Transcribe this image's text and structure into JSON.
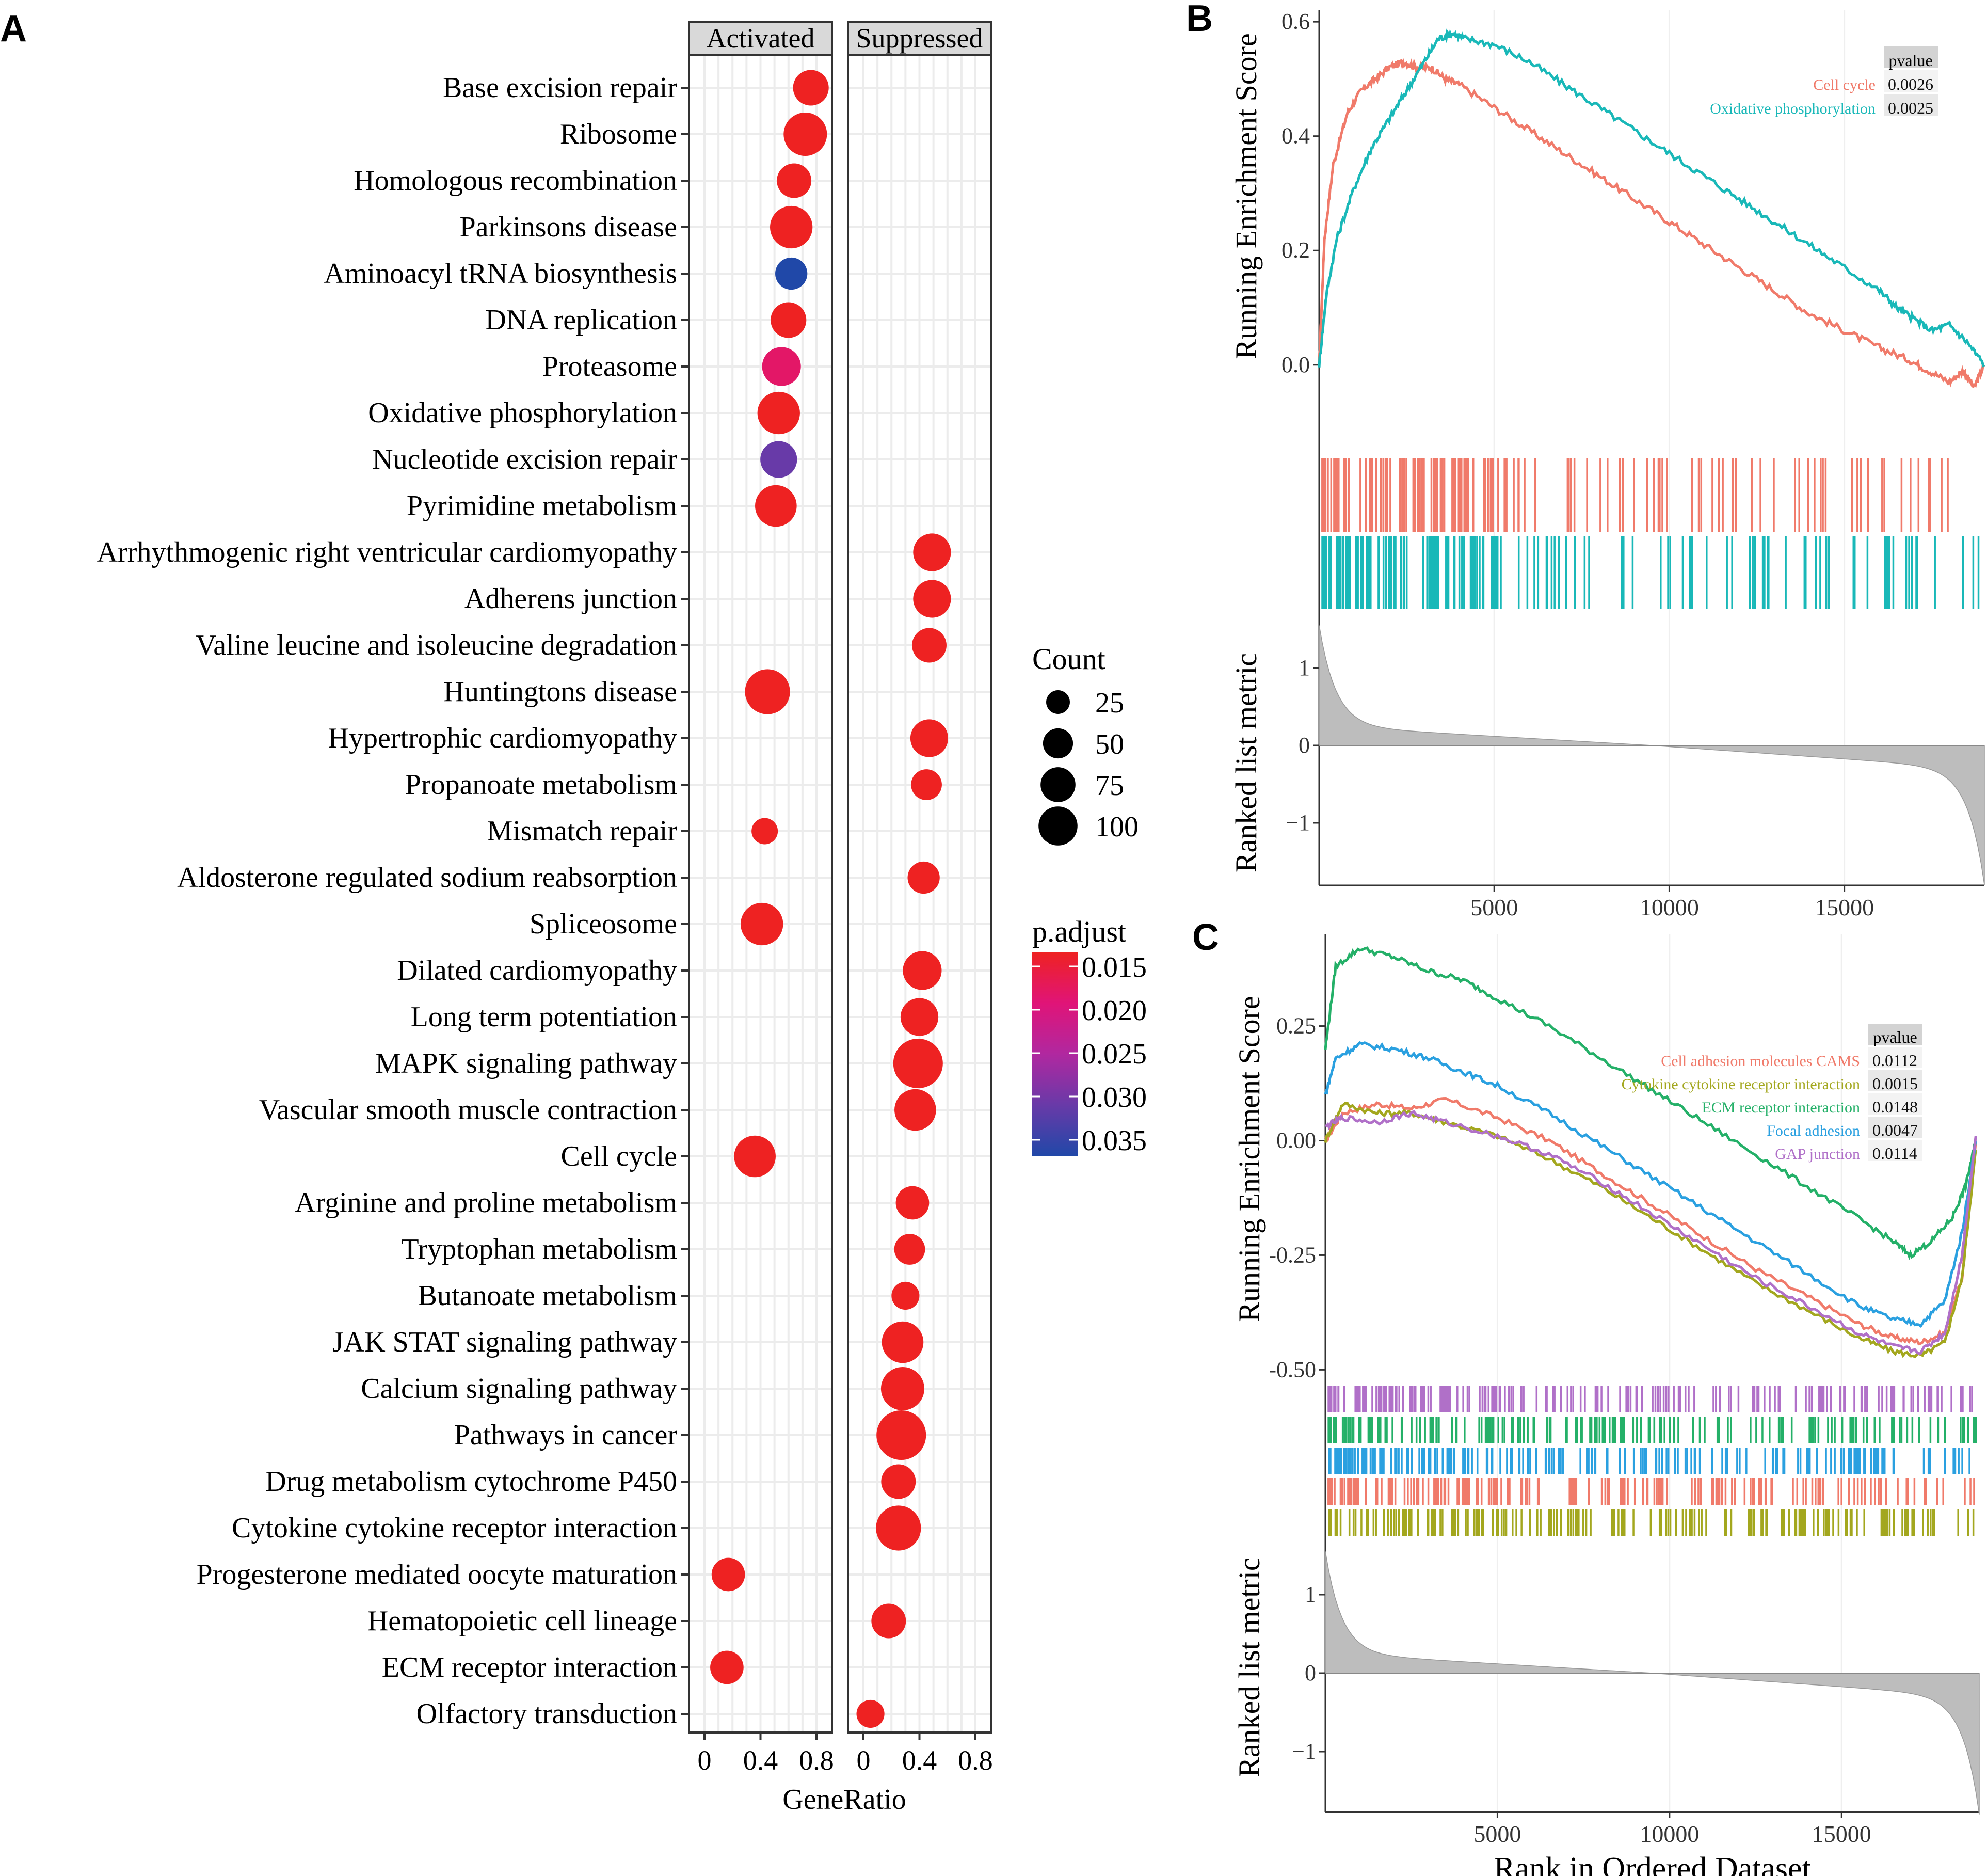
{
  "panel_labels": {
    "a": "A",
    "b": "B",
    "c": "C"
  },
  "colors": {
    "activated_red": "#ee2222",
    "cell_cycle": "#f07a6a",
    "oxphos": "#19b8b8",
    "camS": "#f07a6a",
    "cytokine": "#a3a71e",
    "ecm": "#24b068",
    "focal": "#2aa0e0",
    "gap": "#b070c8",
    "metric_fill": "#bdbdbd",
    "grid": "#ececec",
    "strip_bg": "#d9d9d9"
  },
  "chart_data": [
    {
      "id": "A",
      "type": "scatter",
      "subtype": "dotplot",
      "facets": [
        "Activated",
        "Suppressed"
      ],
      "xlabel": "GeneRatio",
      "xlim": [
        0,
        0.8
      ],
      "xticks": [
        "0",
        "0.4",
        "0.8"
      ],
      "pathways": [
        {
          "name": "Base excision repair",
          "facet": "Activated",
          "ratio": 0.76,
          "count": 60,
          "padj": 0.015
        },
        {
          "name": "Ribosome",
          "facet": "Activated",
          "ratio": 0.72,
          "count": 100,
          "padj": 0.015
        },
        {
          "name": "Homologous recombination",
          "facet": "Activated",
          "ratio": 0.64,
          "count": 55,
          "padj": 0.015
        },
        {
          "name": "Parkinsons disease",
          "facet": "Activated",
          "ratio": 0.62,
          "count": 95,
          "padj": 0.015
        },
        {
          "name": "Aminoacyl tRNA biosynthesis",
          "facet": "Activated",
          "ratio": 0.62,
          "count": 45,
          "padj": 0.035
        },
        {
          "name": "DNA replication",
          "facet": "Activated",
          "ratio": 0.6,
          "count": 60,
          "padj": 0.015
        },
        {
          "name": "Proteasome",
          "facet": "Activated",
          "ratio": 0.55,
          "count": 75,
          "padj": 0.019
        },
        {
          "name": "Oxidative phosphorylation",
          "facet": "Activated",
          "ratio": 0.53,
          "count": 95,
          "padj": 0.015
        },
        {
          "name": "Nucleotide excision repair",
          "facet": "Activated",
          "ratio": 0.53,
          "count": 65,
          "padj": 0.03
        },
        {
          "name": "Pyrimidine metabolism",
          "facet": "Activated",
          "ratio": 0.51,
          "count": 90,
          "padj": 0.015
        },
        {
          "name": "Arrhythmogenic right ventricular cardiomyopathy",
          "facet": "Suppressed",
          "ratio": 0.49,
          "count": 70,
          "padj": 0.015
        },
        {
          "name": "Adherens junction",
          "facet": "Suppressed",
          "ratio": 0.49,
          "count": 70,
          "padj": 0.015
        },
        {
          "name": "Valine leucine and isoleucine degradation",
          "facet": "Suppressed",
          "ratio": 0.47,
          "count": 55,
          "padj": 0.015
        },
        {
          "name": "Huntingtons disease",
          "facet": "Activated",
          "ratio": 0.45,
          "count": 110,
          "padj": 0.015
        },
        {
          "name": "Hypertrophic cardiomyopathy",
          "facet": "Suppressed",
          "ratio": 0.47,
          "count": 70,
          "padj": 0.015
        },
        {
          "name": "Propanoate metabolism",
          "facet": "Suppressed",
          "ratio": 0.45,
          "count": 40,
          "padj": 0.015
        },
        {
          "name": "Mismatch repair",
          "facet": "Activated",
          "ratio": 0.43,
          "count": 25,
          "padj": 0.015
        },
        {
          "name": "Aldosterone regulated sodium reabsorption",
          "facet": "Suppressed",
          "ratio": 0.43,
          "count": 45,
          "padj": 0.015
        },
        {
          "name": "Spliceosome",
          "facet": "Activated",
          "ratio": 0.41,
          "count": 95,
          "padj": 0.015
        },
        {
          "name": "Dilated cardiomyopathy",
          "facet": "Suppressed",
          "ratio": 0.42,
          "count": 75,
          "padj": 0.015
        },
        {
          "name": "Long term potentiation",
          "facet": "Suppressed",
          "ratio": 0.4,
          "count": 70,
          "padj": 0.015
        },
        {
          "name": "MAPK signaling pathway",
          "facet": "Suppressed",
          "ratio": 0.39,
          "count": 140,
          "padj": 0.015
        },
        {
          "name": "Vascular smooth muscle contraction",
          "facet": "Suppressed",
          "ratio": 0.37,
          "count": 90,
          "padj": 0.015
        },
        {
          "name": "Cell cycle",
          "facet": "Activated",
          "ratio": 0.36,
          "count": 90,
          "padj": 0.015
        },
        {
          "name": "Arginine and proline metabolism",
          "facet": "Suppressed",
          "ratio": 0.35,
          "count": 50,
          "padj": 0.015
        },
        {
          "name": "Tryptophan metabolism",
          "facet": "Suppressed",
          "ratio": 0.33,
          "count": 40,
          "padj": 0.015
        },
        {
          "name": "Butanoate metabolism",
          "facet": "Suppressed",
          "ratio": 0.3,
          "count": 30,
          "padj": 0.015
        },
        {
          "name": "JAK STAT signaling pathway",
          "facet": "Suppressed",
          "ratio": 0.28,
          "count": 90,
          "padj": 0.015
        },
        {
          "name": "Calcium signaling pathway",
          "facet": "Suppressed",
          "ratio": 0.28,
          "count": 100,
          "padj": 0.015
        },
        {
          "name": "Pathways in cancer",
          "facet": "Suppressed",
          "ratio": 0.27,
          "count": 140,
          "padj": 0.015
        },
        {
          "name": "Drug metabolism cytochrome P450",
          "facet": "Suppressed",
          "ratio": 0.25,
          "count": 55,
          "padj": 0.015
        },
        {
          "name": "Cytokine cytokine receptor interaction",
          "facet": "Suppressed",
          "ratio": 0.25,
          "count": 110,
          "padj": 0.015
        },
        {
          "name": "Progesterone mediated oocyte maturation",
          "facet": "Activated",
          "ratio": 0.17,
          "count": 50,
          "padj": 0.015
        },
        {
          "name": "Hematopoietic cell lineage",
          "facet": "Suppressed",
          "ratio": 0.18,
          "count": 55,
          "padj": 0.015
        },
        {
          "name": "ECM receptor interaction",
          "facet": "Activated",
          "ratio": 0.16,
          "count": 50,
          "padj": 0.015
        },
        {
          "name": "Olfactory transduction",
          "facet": "Suppressed",
          "ratio": 0.05,
          "count": 30,
          "padj": 0.015
        }
      ],
      "legend_count": {
        "title": "Count",
        "values": [
          25,
          50,
          75,
          100
        ],
        "labels": [
          "25",
          "50",
          "75",
          "100"
        ]
      },
      "legend_padj": {
        "title": "p.adjust",
        "labels": [
          "0.015",
          "0.020",
          "0.025",
          "0.030",
          "0.035"
        ],
        "range": [
          0.015,
          0.035
        ]
      }
    },
    {
      "id": "B",
      "type": "line",
      "ylabel": "Running Enrichment Score",
      "ylabel2": "Ranked list metric",
      "ylim": [
        -0.03,
        0.62
      ],
      "yticks": [
        "0.0",
        "0.2",
        "0.4",
        "0.6"
      ],
      "xlim": [
        0,
        19000
      ],
      "xticks": [
        "5000",
        "10000",
        "15000"
      ],
      "metric_ticks": [
        "1",
        "0",
        "−1"
      ],
      "table_header": "pvalue",
      "series": [
        {
          "name": "Cell cycle",
          "pvalue": "0.0026",
          "x": [
            0,
            150,
            400,
            800,
            1200,
            1600,
            2000,
            2400,
            2800,
            3200,
            3600,
            4000,
            5000,
            6000,
            7000,
            8000,
            9000,
            10000,
            11000,
            12000,
            13000,
            14000,
            15000,
            16000,
            16800,
            17400,
            18000,
            18400,
            18700,
            19000
          ],
          "y": [
            0,
            0.22,
            0.35,
            0.44,
            0.48,
            0.5,
            0.52,
            0.53,
            0.52,
            0.52,
            0.5,
            0.49,
            0.45,
            0.41,
            0.37,
            0.33,
            0.29,
            0.25,
            0.21,
            0.17,
            0.13,
            0.09,
            0.06,
            0.03,
            0.01,
            -0.01,
            -0.03,
            -0.01,
            -0.04,
            0
          ]
        },
        {
          "name": "Oxidative phosphorylation",
          "pvalue": "0.0025",
          "x": [
            0,
            200,
            500,
            1000,
            1500,
            2000,
            2500,
            3000,
            3400,
            3800,
            4200,
            5000,
            6000,
            7000,
            8000,
            9000,
            10000,
            11000,
            12000,
            13000,
            14000,
            15000,
            16000,
            16500,
            17000,
            17500,
            18000,
            18500,
            19000
          ],
          "y": [
            0,
            0.12,
            0.22,
            0.31,
            0.38,
            0.43,
            0.48,
            0.53,
            0.57,
            0.58,
            0.57,
            0.56,
            0.53,
            0.49,
            0.45,
            0.41,
            0.37,
            0.33,
            0.29,
            0.25,
            0.21,
            0.17,
            0.13,
            0.1,
            0.08,
            0.06,
            0.07,
            0.04,
            0
          ]
        }
      ]
    },
    {
      "id": "C",
      "type": "line",
      "ylabel": "Running Enrichment Score",
      "ylabel2": "Ranked list metric",
      "xlabel": "Rank in Ordered Dataset",
      "ylim": [
        -0.53,
        0.45
      ],
      "yticks": [
        "0.25",
        "0.00",
        "-0.25",
        "-0.50"
      ],
      "xlim": [
        0,
        19000
      ],
      "xticks": [
        "5000",
        "10000",
        "15000"
      ],
      "metric_ticks": [
        "1",
        "0",
        "−1"
      ],
      "table_header": "pvalue",
      "series": [
        {
          "name": "Cell adhesion molecules CAMS",
          "pvalue": "0.0112",
          "x": [
            0,
            500,
            1500,
            2500,
            3500,
            5000,
            6500,
            8000,
            9500,
            11000,
            12500,
            14000,
            15500,
            16500,
            17300,
            18000,
            18500,
            18900
          ],
          "y": [
            0,
            0.06,
            0.08,
            0.07,
            0.09,
            0.05,
            0.0,
            -0.07,
            -0.14,
            -0.21,
            -0.28,
            -0.34,
            -0.4,
            -0.43,
            -0.44,
            -0.42,
            -0.3,
            0.0
          ]
        },
        {
          "name": "Cytokine cytokine receptor interaction",
          "pvalue": "0.0015",
          "x": [
            0,
            500,
            1500,
            2500,
            3500,
            5000,
            6500,
            8000,
            9500,
            11000,
            12500,
            14000,
            15500,
            16500,
            17300,
            18000,
            18500,
            18900
          ],
          "y": [
            0,
            0.08,
            0.06,
            0.06,
            0.04,
            0.01,
            -0.04,
            -0.1,
            -0.17,
            -0.24,
            -0.31,
            -0.37,
            -0.43,
            -0.46,
            -0.47,
            -0.44,
            -0.3,
            -0.02
          ]
        },
        {
          "name": "ECM receptor interaction",
          "pvalue": "0.0148",
          "x": [
            0,
            300,
            1000,
            2000,
            3000,
            4000,
            5000,
            6500,
            8000,
            9500,
            11000,
            12500,
            14000,
            15500,
            16500,
            17000,
            17600,
            18200,
            18600,
            18900
          ],
          "y": [
            0.2,
            0.38,
            0.42,
            0.4,
            0.37,
            0.35,
            0.31,
            0.25,
            0.18,
            0.11,
            0.04,
            -0.03,
            -0.1,
            -0.17,
            -0.22,
            -0.25,
            -0.22,
            -0.17,
            -0.1,
            0.0
          ]
        },
        {
          "name": "Focal adhesion",
          "pvalue": "0.0047",
          "x": [
            0,
            300,
            1000,
            2000,
            3000,
            4000,
            5000,
            6500,
            8000,
            9500,
            11000,
            12500,
            14000,
            15500,
            16500,
            17300,
            18000,
            18500,
            18900
          ],
          "y": [
            0.1,
            0.18,
            0.21,
            0.2,
            0.18,
            0.15,
            0.12,
            0.06,
            -0.01,
            -0.08,
            -0.15,
            -0.22,
            -0.29,
            -0.36,
            -0.39,
            -0.4,
            -0.35,
            -0.2,
            0.0
          ]
        },
        {
          "name": "GAP junction",
          "pvalue": "0.0114",
          "x": [
            0,
            500,
            1500,
            2500,
            3500,
            5000,
            6500,
            8000,
            9500,
            11000,
            12500,
            14000,
            15500,
            16500,
            17300,
            18000,
            18500,
            18900
          ],
          "y": [
            0.03,
            0.05,
            0.04,
            0.06,
            0.04,
            0.01,
            -0.03,
            -0.09,
            -0.16,
            -0.23,
            -0.3,
            -0.36,
            -0.42,
            -0.45,
            -0.46,
            -0.42,
            -0.25,
            0.01
          ]
        }
      ]
    }
  ]
}
